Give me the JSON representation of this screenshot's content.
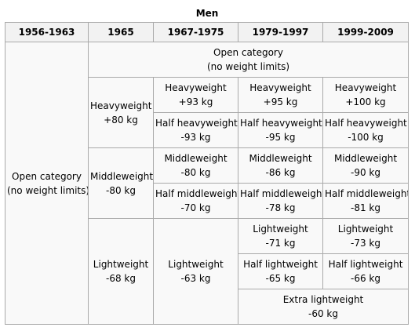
{
  "caption": "Men",
  "headers": [
    "1956-1963",
    "1965",
    "1967-1975",
    "1979-1997",
    "1999-2009"
  ],
  "cells": {
    "open_1956": [
      "Open category",
      "(no weight limits)"
    ],
    "open_top": [
      "Open category",
      "(no weight limits)"
    ],
    "heavy_1965": [
      "Heavyweight",
      "+80 kg"
    ],
    "heavy_1967": [
      "Heavyweight",
      "+93 kg"
    ],
    "heavy_1979": [
      "Heavyweight",
      "+95 kg"
    ],
    "heavy_1999": [
      "Heavyweight",
      "+100 kg"
    ],
    "halfheavy_1967": [
      "Half heavyweight",
      "-93 kg"
    ],
    "halfheavy_1979": [
      "Half heavyweight",
      "-95 kg"
    ],
    "halfheavy_1999": [
      "Half heavyweight",
      "-100 kg"
    ],
    "middle_1965": [
      "Middleweight",
      "-80 kg"
    ],
    "middle_1967": [
      "Middleweight",
      "-80 kg"
    ],
    "middle_1979": [
      "Middleweight",
      "-86 kg"
    ],
    "middle_1999": [
      "Middleweight",
      "-90 kg"
    ],
    "halfmiddle_1967": [
      "Half middleweight",
      "-70 kg"
    ],
    "halfmiddle_1979": [
      "Half middleweight",
      "-78 kg"
    ],
    "halfmiddle_1999": [
      "Half middleweight",
      "-81 kg"
    ],
    "light_1965": [
      "Lightweight",
      "-68 kg"
    ],
    "light_1967": [
      "Lightweight",
      "-63 kg"
    ],
    "light_1979": [
      "Lightweight",
      "-71 kg"
    ],
    "light_1999": [
      "Lightweight",
      "-73 kg"
    ],
    "halflight_1979": [
      "Half lightweight",
      "-65 kg"
    ],
    "halflight_1999": [
      "Half lightweight",
      "-66 kg"
    ],
    "extralight": [
      "Extra lightweight",
      "-60 kg"
    ]
  }
}
